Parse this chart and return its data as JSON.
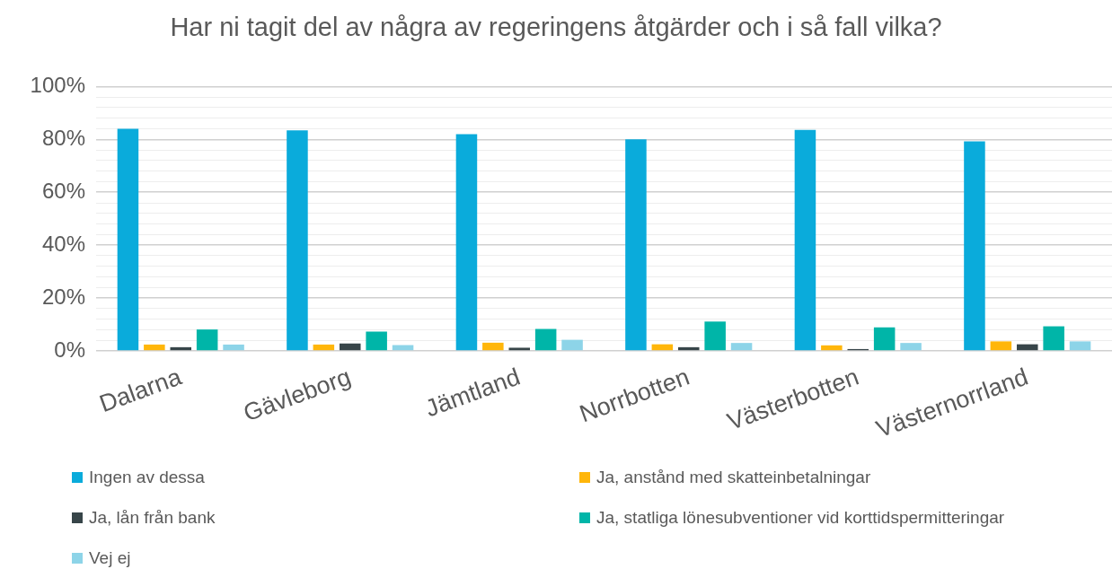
{
  "chart_data": {
    "type": "bar",
    "title": "Har ni tagit del av några av regeringens åtgärder och i så fall vilka?",
    "categories": [
      "Dalarna",
      "Gävleborg",
      "Jämtland",
      "Norrbotten",
      "Västerbotten",
      "Västernorrland"
    ],
    "series": [
      {
        "name": "Ingen av dessa",
        "color": "#0aabdb",
        "values": [
          84.0,
          83.4,
          82.0,
          80.0,
          83.6,
          79.3
        ]
      },
      {
        "name": "Ja, anstånd med skatteinbetalningar",
        "color": "#ffb60a",
        "values": [
          2.4,
          2.4,
          3.1,
          2.5,
          2.1,
          3.6
        ]
      },
      {
        "name": "Ja, lån från bank",
        "color": "#374549",
        "values": [
          1.4,
          2.8,
          1.2,
          1.4,
          0.7,
          2.5
        ]
      },
      {
        "name": "Ja, statliga lönesubventioner vid korttidspermitteringar",
        "color": "#00b5a8",
        "values": [
          8.1,
          7.3,
          8.3,
          11.1,
          8.9,
          9.3
        ]
      },
      {
        "name": "Vej ej",
        "color": "#8dd4e8",
        "values": [
          2.4,
          2.2,
          4.2,
          3.0,
          3.0,
          3.6
        ]
      }
    ],
    "ylim": [
      0,
      100
    ],
    "yticks": [
      {
        "value": 0,
        "label": "0%"
      },
      {
        "value": 4,
        "label": null
      },
      {
        "value": 8,
        "label": null
      },
      {
        "value": 12,
        "label": null
      },
      {
        "value": 16,
        "label": null
      },
      {
        "value": 20,
        "label": "20%"
      },
      {
        "value": 24,
        "label": null
      },
      {
        "value": 28,
        "label": null
      },
      {
        "value": 32,
        "label": null
      },
      {
        "value": 36,
        "label": null
      },
      {
        "value": 40,
        "label": "40%"
      },
      {
        "value": 44,
        "label": null
      },
      {
        "value": 48,
        "label": null
      },
      {
        "value": 52,
        "label": null
      },
      {
        "value": 56,
        "label": null
      },
      {
        "value": 60,
        "label": "60%"
      },
      {
        "value": 64,
        "label": null
      },
      {
        "value": 68,
        "label": null
      },
      {
        "value": 72,
        "label": null
      },
      {
        "value": 76,
        "label": null
      },
      {
        "value": 80,
        "label": "80%"
      },
      {
        "value": 84,
        "label": null
      },
      {
        "value": 88,
        "label": null
      },
      {
        "value": 92,
        "label": null
      },
      {
        "value": 96,
        "label": null
      },
      {
        "value": 100,
        "label": "100%"
      }
    ],
    "grid": "y",
    "legend": "bottom"
  }
}
